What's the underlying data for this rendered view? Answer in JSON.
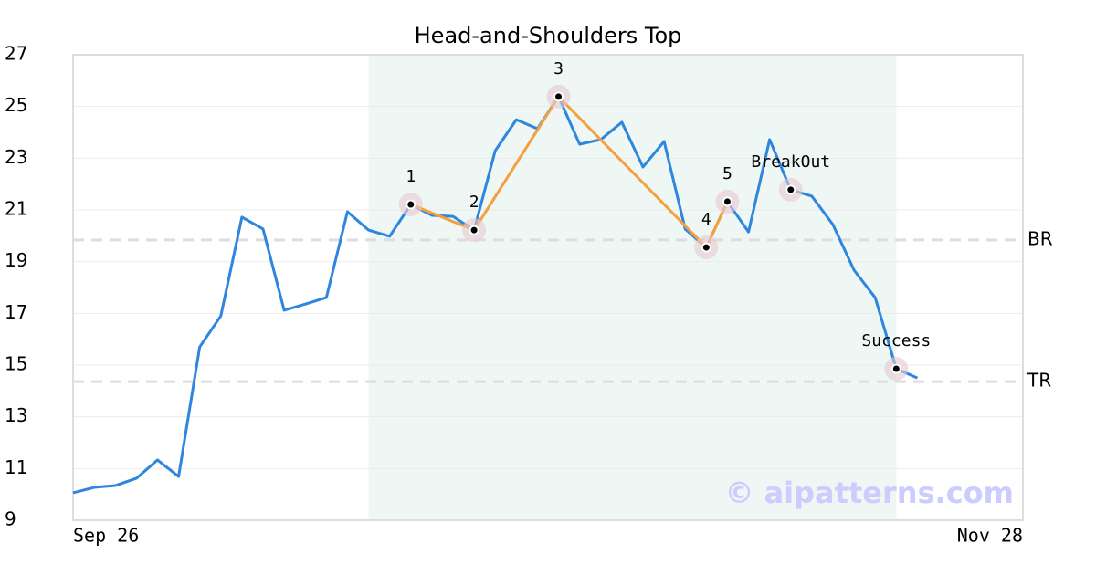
{
  "chart_data": {
    "type": "line",
    "title": "Head-and-Shoulders Top",
    "categories": [
      "Sep 26",
      null,
      null,
      null,
      null,
      null,
      null,
      null,
      null,
      null,
      null,
      null,
      null,
      null,
      null,
      null,
      null,
      null,
      null,
      null,
      null,
      null,
      null,
      null,
      null,
      null,
      null,
      null,
      null,
      null,
      null,
      null,
      null,
      null,
      null,
      null,
      null,
      null,
      null,
      null,
      null,
      null,
      null,
      null,
      null,
      "Nov 28"
    ],
    "values": [
      10.06,
      10.27,
      10.34,
      10.62,
      11.33,
      10.69,
      15.7,
      16.9,
      20.72,
      20.26,
      17.12,
      17.36,
      17.61,
      20.93,
      20.22,
      19.98,
      21.21,
      20.79,
      20.75,
      20.22,
      23.29,
      24.49,
      24.14,
      25.38,
      23.54,
      23.72,
      24.39,
      22.66,
      23.65,
      20.26,
      19.55,
      21.32,
      20.15,
      23.72,
      21.78,
      21.53,
      20.43,
      18.67,
      17.61,
      14.86,
      14.5,
      null,
      null,
      null,
      null,
      null
    ],
    "color": "#2e86de",
    "ylim": [
      9,
      27
    ],
    "yticks": [
      9,
      11,
      13,
      15,
      17,
      19,
      21,
      23,
      25,
      27
    ],
    "grid": true,
    "pattern": {
      "color": "#f5a040",
      "shade": {
        "from": 14,
        "to": 39,
        "color": "#eef7f3"
      },
      "points": [
        {
          "index": 16,
          "label": "1",
          "value": 21.21
        },
        {
          "index": 19,
          "label": "2",
          "value": 20.22
        },
        {
          "index": 23,
          "label": "3",
          "value": 25.38
        },
        {
          "index": 30,
          "label": "4",
          "value": 19.55
        },
        {
          "index": 31,
          "label": "5",
          "value": 21.32
        }
      ]
    },
    "events": [
      {
        "index": 34,
        "label": "BreakOut",
        "value": 21.78
      },
      {
        "index": 39,
        "label": "Success",
        "value": 14.86
      }
    ],
    "levels": [
      {
        "label": "BR",
        "value": 19.84
      },
      {
        "label": "TR",
        "value": 14.36
      }
    ],
    "watermark": "© aipatterns.com"
  }
}
